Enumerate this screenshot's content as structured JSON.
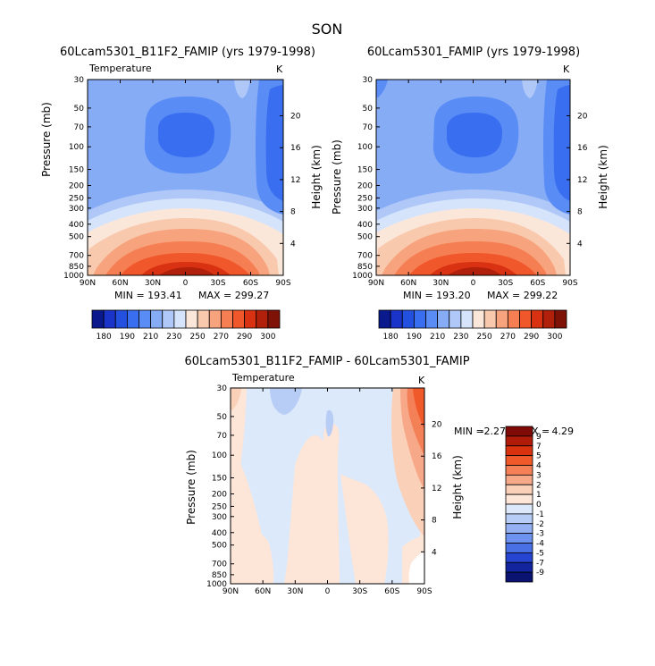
{
  "page": {
    "season": "SON"
  },
  "chart_data": [
    {
      "type": "heatmap",
      "title": "60Lcam5301_B11F2_FAMIP (yrs 1979-1998)",
      "variable": "Temperature",
      "units": "K",
      "xlabel": "",
      "ylabel": "Pressure (mb)",
      "y2label": "Height (km)",
      "x_ticks": [
        "90N",
        "60N",
        "30N",
        "0",
        "30S",
        "60S",
        "90S"
      ],
      "y_ticks": [
        "30",
        "50",
        "70",
        "100",
        "150",
        "200",
        "250",
        "300",
        "400",
        "500",
        "700",
        "850",
        "1000"
      ],
      "y2_ticks": [
        "20",
        "16",
        "12",
        "8",
        "4"
      ],
      "min_text": "MIN = 193.41",
      "max_text": "MAX = 299.27",
      "colorbar": [
        "180",
        "190",
        "210",
        "230",
        "250",
        "270",
        "290",
        "300"
      ]
    },
    {
      "type": "heatmap",
      "title": "60Lcam5301_FAMIP (yrs 1979-1998)",
      "variable": "Temperature",
      "units": "K",
      "xlabel": "",
      "ylabel": "Pressure (mb)",
      "y2label": "Height (km)",
      "x_ticks": [
        "90N",
        "60N",
        "30N",
        "0",
        "30S",
        "60S",
        "90S"
      ],
      "y_ticks": [
        "30",
        "50",
        "70",
        "100",
        "150",
        "200",
        "250",
        "300",
        "400",
        "500",
        "700",
        "850",
        "1000"
      ],
      "y2_ticks": [
        "20",
        "16",
        "12",
        "8",
        "4"
      ],
      "min_text": "MIN = 193.20",
      "max_text": "MAX = 299.22",
      "colorbar": [
        "180",
        "190",
        "210",
        "230",
        "250",
        "270",
        "290",
        "300"
      ]
    },
    {
      "type": "heatmap",
      "title": "60Lcam5301_B11F2_FAMIP - 60Lcam5301_FAMIP",
      "variable": "Temperature",
      "units": "K",
      "xlabel": "",
      "ylabel": "Pressure (mb)",
      "y2label": "Height (km)",
      "x_ticks": [
        "90N",
        "60N",
        "30N",
        "0",
        "30S",
        "60S",
        "90S"
      ],
      "y_ticks": [
        "30",
        "50",
        "70",
        "100",
        "150",
        "200",
        "250",
        "300",
        "400",
        "500",
        "700",
        "850",
        "1000"
      ],
      "y2_ticks": [
        "20",
        "16",
        "12",
        "8",
        "4"
      ],
      "min_label": "MIN =",
      "min_value": "-2.27",
      "max_label": "MAX =",
      "max_value": "4.29",
      "colorbar": [
        "9",
        "7",
        "5",
        "4",
        "3",
        "2",
        "1",
        "0",
        "-1",
        "-2",
        "-3",
        "-4",
        "-5",
        "-7",
        "-9"
      ]
    }
  ],
  "colors": {
    "temp_scale": [
      "#0a1a8c",
      "#1a33c8",
      "#2450e0",
      "#3a6ef0",
      "#5a8cf5",
      "#86acf6",
      "#afc8f8",
      "#d6e4fb",
      "#fbe7da",
      "#f9c9ae",
      "#f7a37e",
      "#f57e52",
      "#f0582c",
      "#d83212",
      "#b0200a",
      "#7e1206"
    ],
    "diff_scale": [
      "#800a05",
      "#b01b0a",
      "#d8320f",
      "#f05a2b",
      "#f48058",
      "#f7a889",
      "#fbd0b8",
      "#fde6d8",
      "#dce9fb",
      "#b8cdf6",
      "#95b1f3",
      "#6e92ef",
      "#4a70e6",
      "#2645d0",
      "#12259e",
      "#0a1470"
    ]
  }
}
